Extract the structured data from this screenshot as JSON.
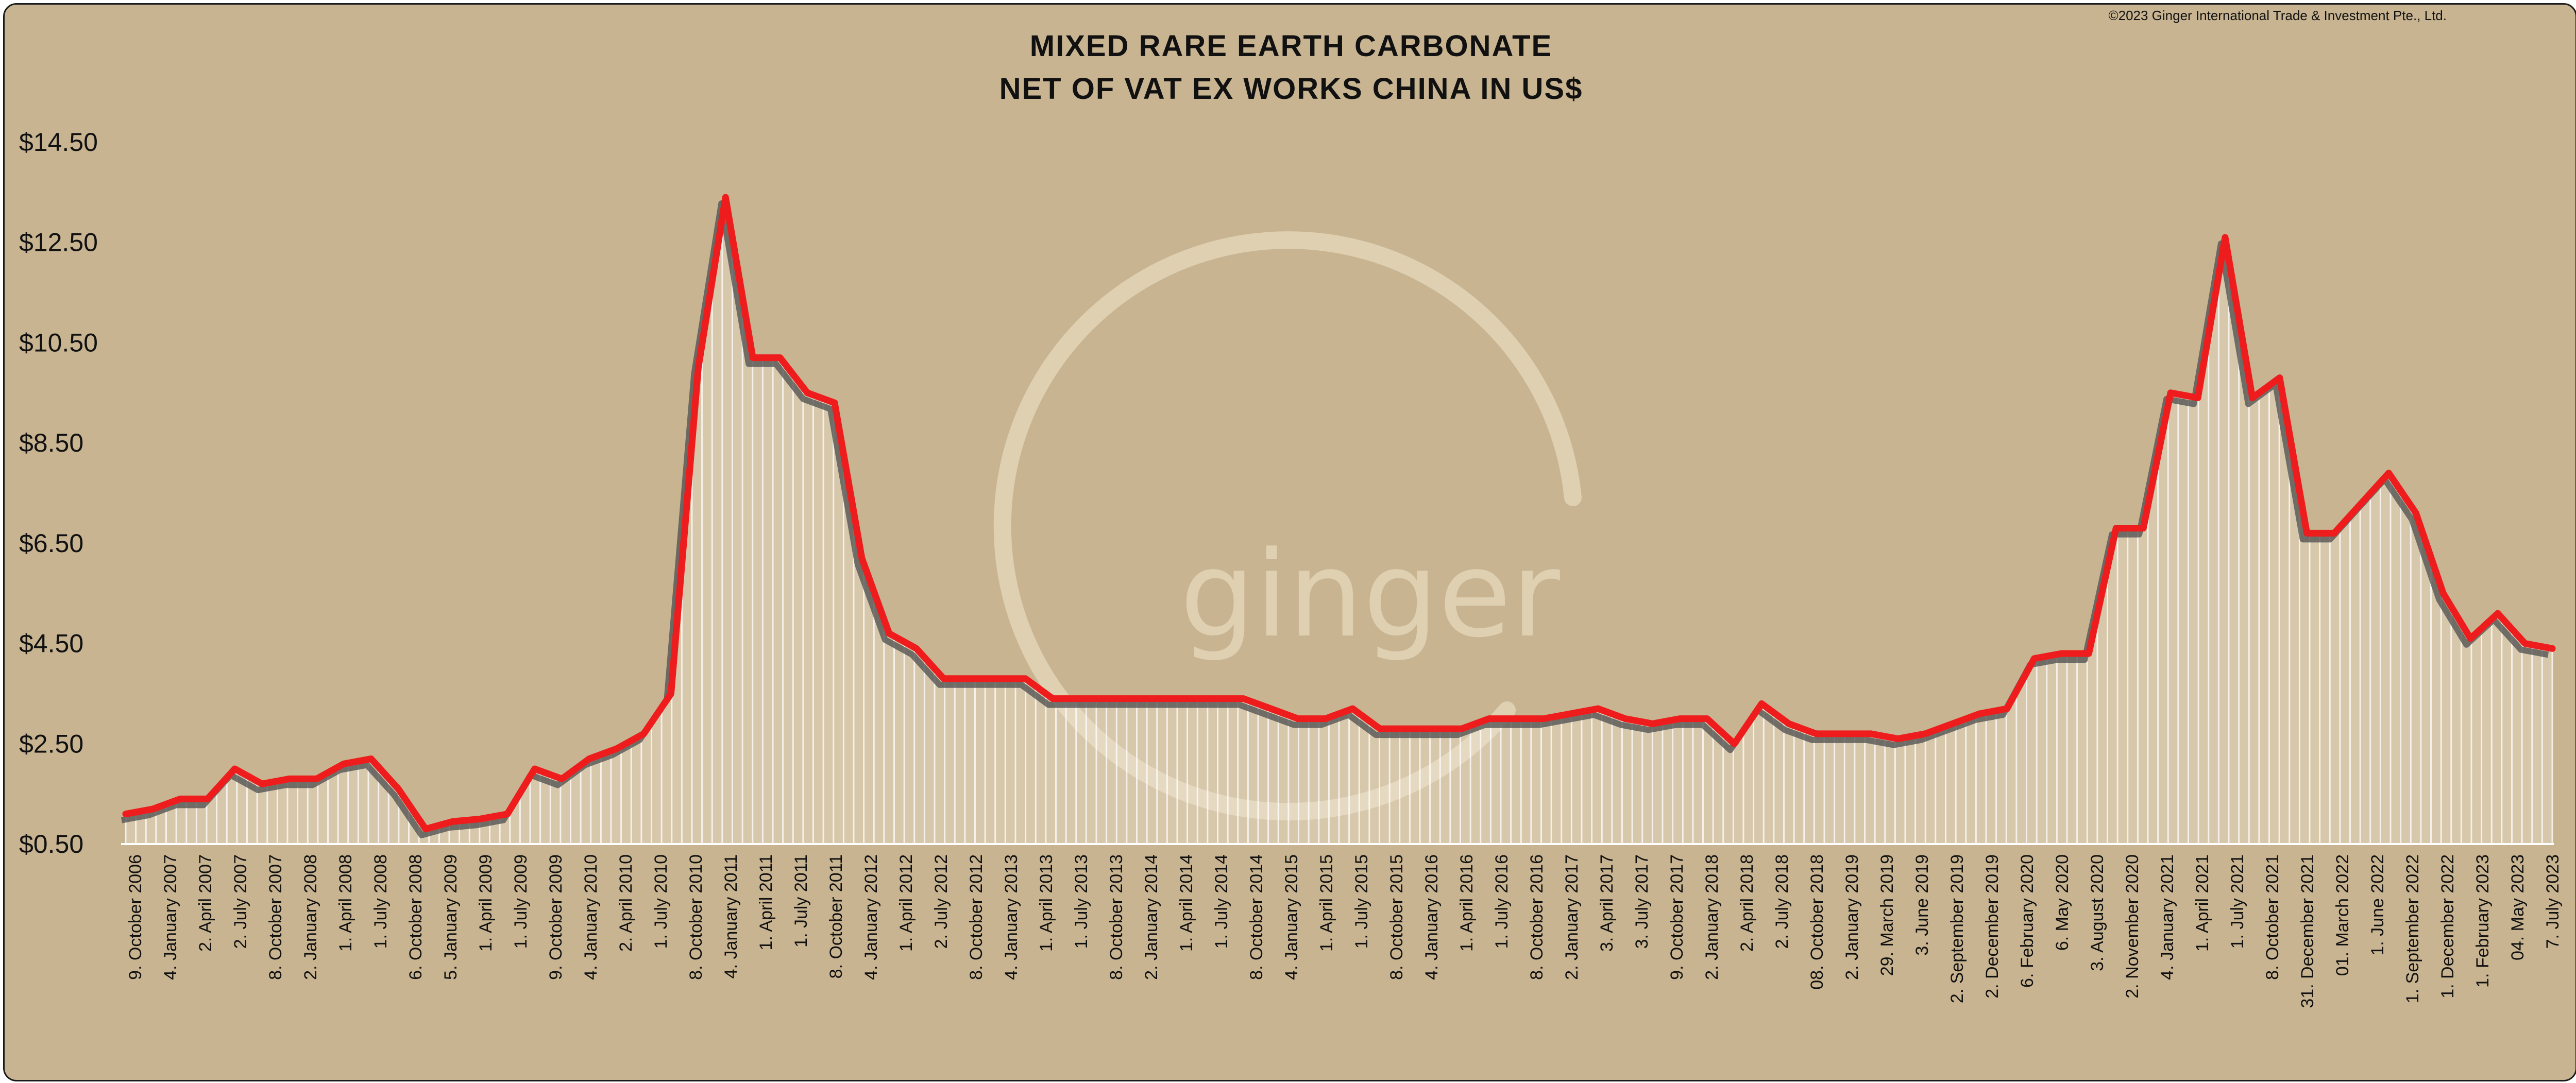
{
  "copyright": "©2023 Ginger International Trade & Investment Pte., Ltd.",
  "watermark": {
    "text": "ginger",
    "icon": "ginger-logo-ring-icon"
  },
  "colors": {
    "background": "#c8b491",
    "line": "#ee1c1c",
    "shadow": "#555555",
    "fill": "#f4ecdd"
  },
  "chart_data": {
    "type": "area",
    "title": [
      "MIXED RARE EARTH CARBONATE",
      "NET OF VAT EX WORKS CHINA IN US$"
    ],
    "xlabel": "",
    "ylabel": "",
    "ylim": [
      0.5,
      14.5
    ],
    "yticks": [
      0.5,
      2.5,
      4.5,
      6.5,
      8.5,
      10.5,
      12.5,
      14.5
    ],
    "ytick_labels": [
      "$0.50",
      "$2.50",
      "$4.50",
      "$6.50",
      "$8.50",
      "$10.50",
      "$12.50",
      "$14.50"
    ],
    "x_tick_labels": [
      "9. October 2006",
      "4. January 2007",
      "2. April 2007",
      "2. July 2007",
      "8. October 2007",
      "2. January 2008",
      "1. April 2008",
      "1. July 2008",
      "6. October 2008",
      "5. January 2009",
      "1. April 2009",
      "1. July 2009",
      "9. October 2009",
      "4. January 2010",
      "2. April 2010",
      "1. July 2010",
      "8. October 2010",
      "4. January 2011",
      "1. April 2011",
      "1. July 2011",
      "8. October 2011",
      "4. January 2012",
      "1. April 2012",
      "2. July 2012",
      "8. October 2012",
      "4. January 2013",
      "1. April 2013",
      "1. July 2013",
      "8. October 2013",
      "2. January 2014",
      "1. April 2014",
      "1. July 2014",
      "8. October 2014",
      "4. January 2015",
      "1. April 2015",
      "1. July 2015",
      "8. October 2015",
      "4. January 2016",
      "1. April 2016",
      "1. July 2016",
      "8. October 2016",
      "2. January 2017",
      "3. April 2017",
      "3. July 2017",
      "9. October 2017",
      "2. January 2018",
      "2. April 2018",
      "2. July 2018",
      "08. October 2018",
      "2. January 2019",
      "29. March 2019",
      "3. June 2019",
      "2. September 2019",
      "2. December 2019",
      "6. February 2020",
      "6. May 2020",
      "3. August 2020",
      "2. November 2020",
      "4. January 2021",
      "1. April 2021",
      "1. July 2021",
      "8. October 2021",
      "31. December 2021",
      "01. March 2022",
      "1. June 2022",
      "1. September 2022",
      "1. December 2022",
      "1. February 2023",
      "04. May 2023",
      "7. July 2023"
    ],
    "series": [
      {
        "values": [
          1.1,
          1.2,
          1.4,
          1.4,
          2.0,
          1.7,
          1.8,
          1.8,
          2.1,
          2.2,
          1.6,
          0.8,
          0.95,
          1.0,
          1.1,
          2.0,
          1.8,
          2.2,
          2.4,
          2.7,
          3.5,
          10.0,
          13.4,
          10.2,
          10.2,
          9.5,
          9.3,
          6.2,
          4.7,
          4.4,
          3.8,
          3.8,
          3.8,
          3.8,
          3.4,
          3.4,
          3.4,
          3.4,
          3.4,
          3.4,
          3.4,
          3.4,
          3.2,
          3.0,
          3.0,
          3.2,
          2.8,
          2.8,
          2.8,
          2.8,
          3.0,
          3.0,
          3.0,
          3.1,
          3.2,
          3.0,
          2.9,
          3.0,
          3.0,
          2.5,
          3.3,
          2.9,
          2.7,
          2.7,
          2.7,
          2.6,
          2.7,
          2.9,
          3.1,
          3.2,
          4.2,
          4.3,
          4.3,
          6.8,
          6.8,
          9.5,
          9.4,
          12.6,
          9.4,
          9.8,
          6.7,
          6.7,
          7.3,
          7.9,
          7.1,
          5.5,
          4.6,
          5.1,
          4.5,
          4.4
        ]
      }
    ]
  }
}
